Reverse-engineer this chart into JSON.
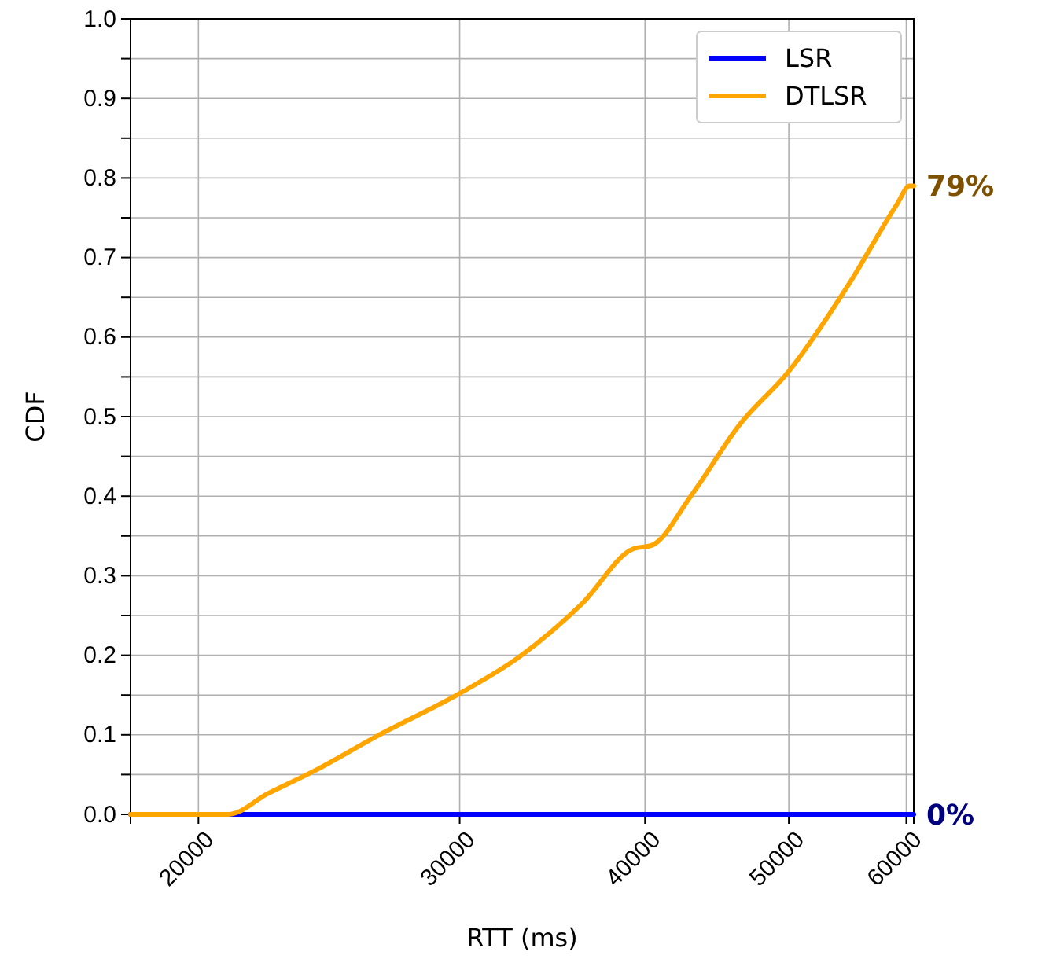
{
  "chart_data": {
    "type": "line",
    "xlabel": "RTT (ms)",
    "ylabel": "CDF",
    "log": "x",
    "xlim": [
      18000,
      60700
    ],
    "xticks": [
      20000,
      30000,
      40000,
      50000,
      60000
    ],
    "ylim": [
      0,
      1
    ],
    "yticks": [
      {
        "value": 0,
        "label": "0.0"
      },
      {
        "value": 0.05,
        "label": null
      },
      0.1,
      {
        "value": 0.15,
        "label": null
      },
      0.2,
      {
        "value": 0.25,
        "label": null
      },
      0.3,
      {
        "value": 0.35,
        "label": null
      },
      0.4,
      {
        "value": 0.45,
        "label": null
      },
      0.5,
      {
        "value": 0.55,
        "label": null
      },
      0.6,
      {
        "value": 0.65,
        "label": null
      },
      0.7,
      {
        "value": 0.75,
        "label": null
      },
      0.8,
      {
        "value": 0.85,
        "label": null
      },
      0.9,
      {
        "value": 0.95,
        "label": null
      },
      {
        "value": 1,
        "label": "1.0"
      }
    ],
    "grid": true,
    "legend": "top right",
    "marker": "none",
    "line_style": "solid",
    "series": [
      {
        "name": "LSR",
        "color": "#0000ff",
        "x": [
          18000,
          60700
        ],
        "values": [
          0,
          0
        ]
      },
      {
        "name": "DTLSR",
        "color": "#ffa500",
        "x": [
          18000,
          20950,
          22270,
          23960,
          26420,
          30000,
          32910,
          36280,
          39300,
          40400,
          43050,
          46330,
          50000,
          54950,
          59140,
          60300,
          60700
        ],
        "values": [
          0,
          0,
          0.026,
          0.055,
          0.099,
          0.152,
          0.198,
          0.265,
          0.334,
          0.338,
          0.403,
          0.49,
          0.557,
          0.668,
          0.767,
          0.79,
          0.79
        ]
      }
    ],
    "annotations": [
      "79%",
      "0%"
    ]
  }
}
